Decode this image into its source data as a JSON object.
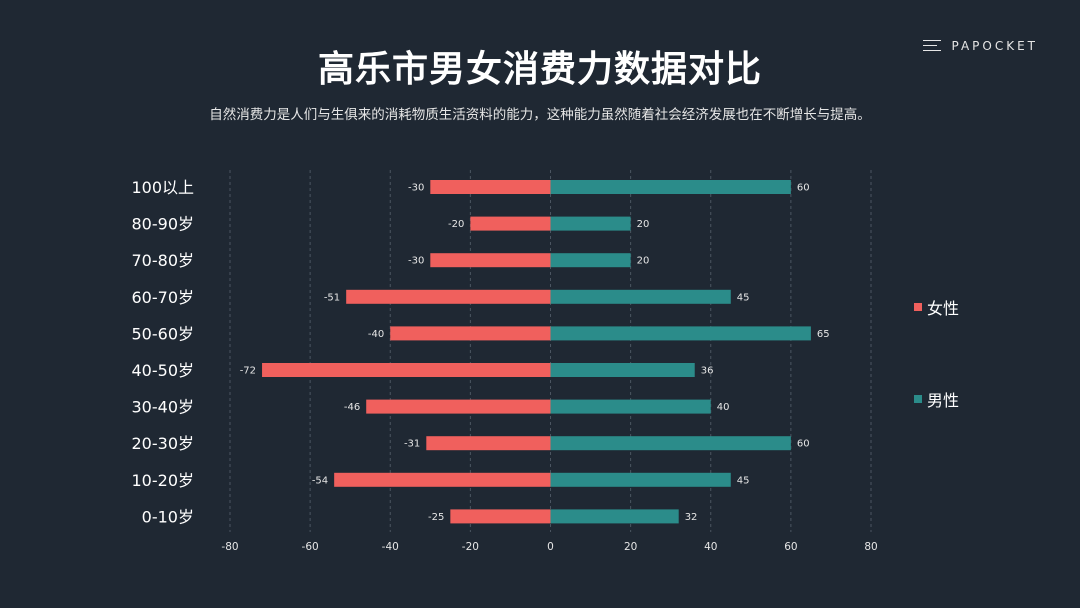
{
  "page": {
    "title": "高乐市男女消费力数据对比",
    "subtitle": "自然消费力是人们与生俱来的消耗物质生活资料的能力，这种能力虽然随着社会经济发展也在不断增长与提高。",
    "brand": "PAPOCKET",
    "brand_icon": "menu-icon"
  },
  "chart_data": {
    "type": "bar",
    "orientation": "horizontal",
    "categories": [
      "100以上",
      "80-90岁",
      "70-80岁",
      "60-70岁",
      "50-60岁",
      "40-50岁",
      "30-40岁",
      "20-30岁",
      "10-20岁",
      "0-10岁"
    ],
    "series": [
      {
        "name": "女性",
        "color": "#f0605d",
        "values": [
          -30,
          -20,
          -30,
          -51,
          -40,
          -72,
          -46,
          -31,
          -54,
          -25
        ]
      },
      {
        "name": "男性",
        "color": "#2b8c8a",
        "values": [
          60,
          20,
          20,
          45,
          65,
          36,
          40,
          60,
          45,
          32
        ]
      }
    ],
    "xlim": [
      -80,
      80
    ],
    "xticks": [
      -80,
      -60,
      -40,
      -20,
      0,
      20,
      40,
      60,
      80
    ],
    "grid": "vertical-dashed",
    "legend": "right",
    "data_labels": true
  }
}
